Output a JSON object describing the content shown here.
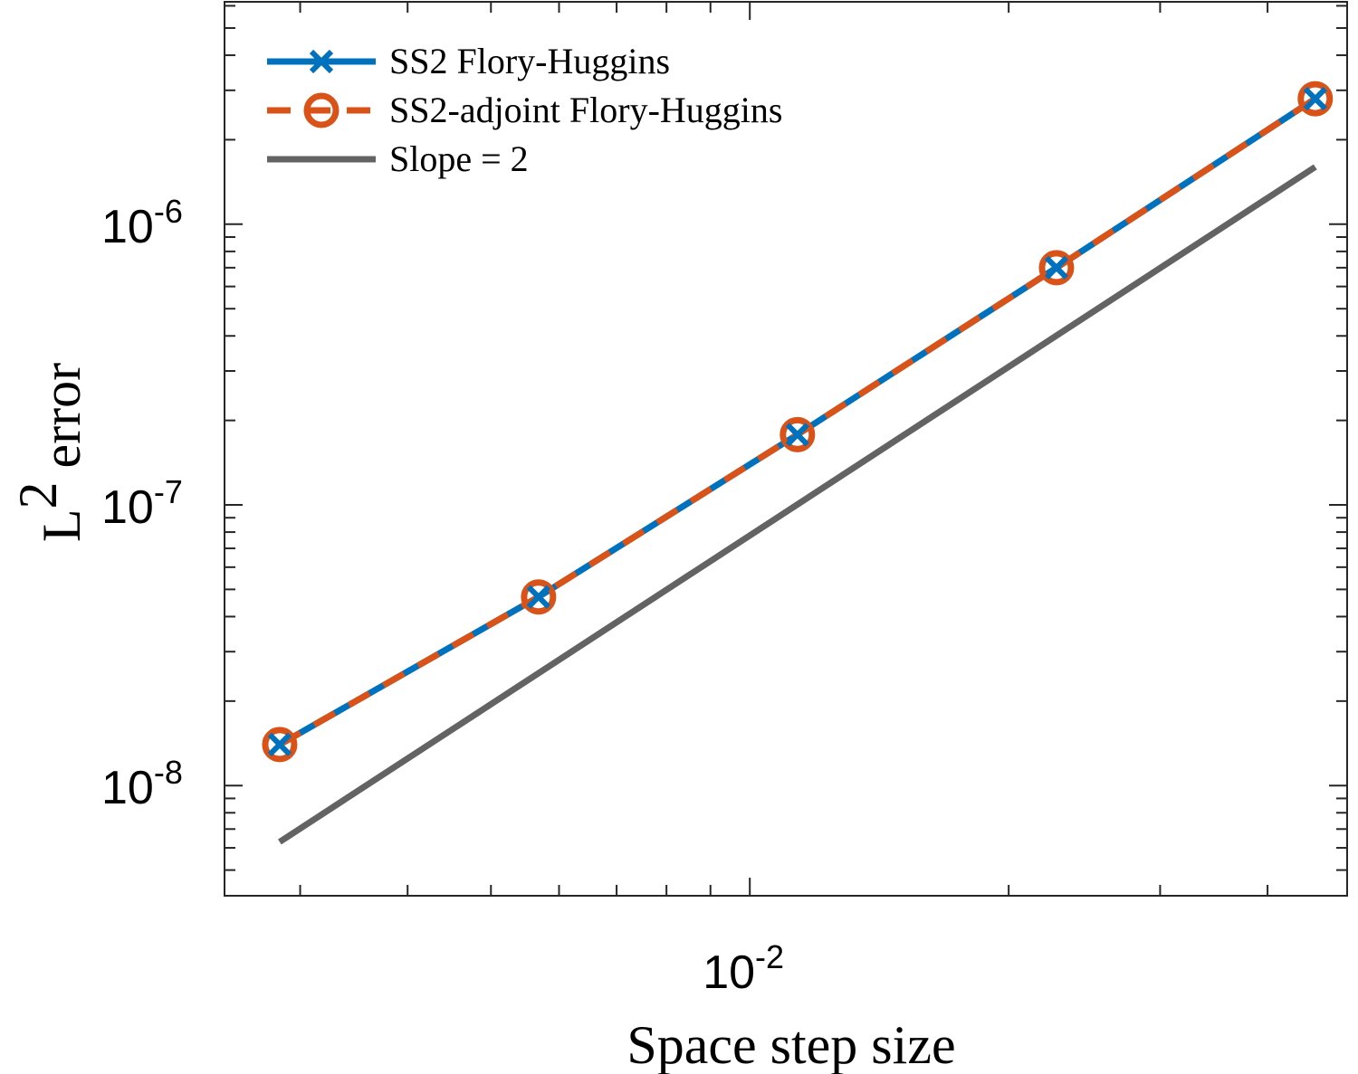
{
  "chart_data": {
    "type": "line",
    "xscale": "log",
    "yscale": "log",
    "xlim": [
      0.00245,
      0.0495
    ],
    "ylim": [
      4.05e-09,
      6.2e-06
    ],
    "xlabel": "Space step size",
    "ylabel": {
      "base": "L",
      "sup": "2",
      "rest": " error"
    },
    "x_ticks": [
      {
        "value": 0.01,
        "base": "10",
        "exp": "-2"
      }
    ],
    "x_minor_ticks": [
      0.003,
      0.004,
      0.005,
      0.006,
      0.007,
      0.008,
      0.009,
      0.02,
      0.03,
      0.04
    ],
    "y_ticks": [
      {
        "value": 1e-08,
        "base": "10",
        "exp": "-8"
      },
      {
        "value": 1e-07,
        "base": "10",
        "exp": "-7"
      },
      {
        "value": 1e-06,
        "base": "10",
        "exp": "-6"
      }
    ],
    "legend_position": "top-left",
    "series": [
      {
        "name": "SS2 Flory-Huggins",
        "color": "#0072BD",
        "line_style": "solid",
        "marker": "x",
        "x": [
          0.00284,
          0.00568,
          0.01136,
          0.02273,
          0.04545
        ],
        "y": [
          1.4e-08,
          4.7e-08,
          1.78e-07,
          7e-07,
          2.8e-06
        ]
      },
      {
        "name": "SS2-adjoint Flory-Huggins",
        "color": "#D95319",
        "line_style": "dashed",
        "marker": "o",
        "x": [
          0.00284,
          0.00568,
          0.01136,
          0.02273,
          0.04545
        ],
        "y": [
          1.4e-08,
          4.7e-08,
          1.78e-07,
          7e-07,
          2.8e-06
        ]
      },
      {
        "name": "Slope = 2",
        "color": "#636363",
        "line_style": "solid",
        "marker": "none",
        "x": [
          0.00284,
          0.04545
        ],
        "y": [
          6.3e-09,
          1.6e-06
        ]
      }
    ]
  }
}
